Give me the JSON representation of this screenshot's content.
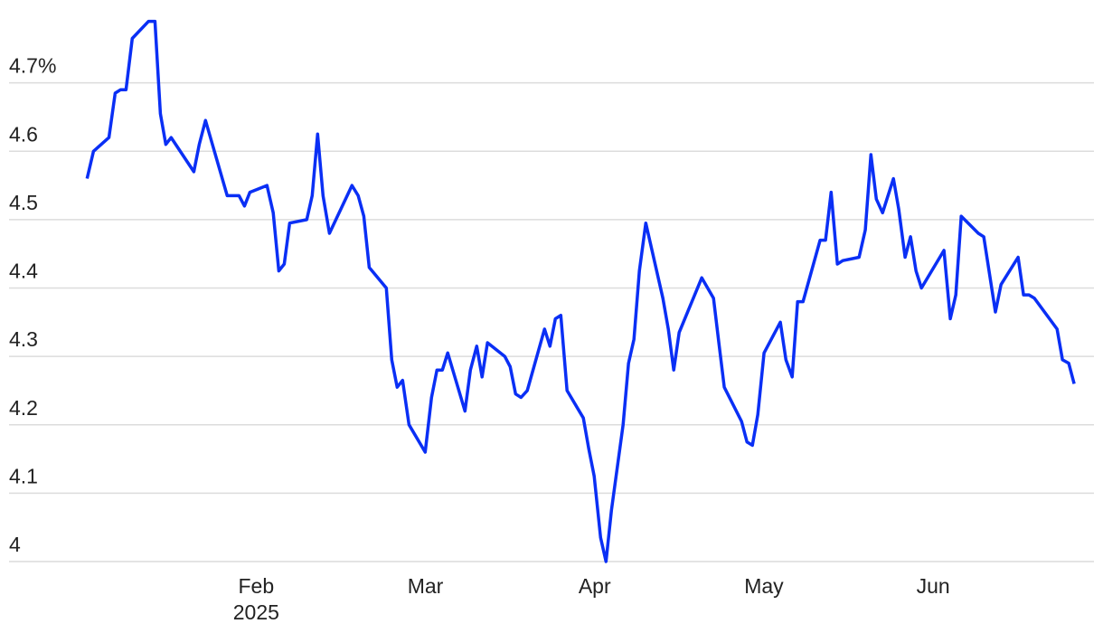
{
  "chart_data": {
    "type": "line",
    "x": [
      1.001,
      1.039,
      1.13,
      1.167,
      1.199,
      1.231,
      1.268,
      1.364,
      1.402,
      1.434,
      1.466,
      1.498,
      1.632,
      1.664,
      1.701,
      1.829,
      1.899,
      1.931,
      1.963,
      2.064,
      2.101,
      2.134,
      2.166,
      2.198,
      2.299,
      2.331,
      2.363,
      2.395,
      2.433,
      2.566,
      2.603,
      2.636,
      2.668,
      2.769,
      2.801,
      2.833,
      2.865,
      2.903,
      2.999,
      3.036,
      3.068,
      3.1,
      3.132,
      3.234,
      3.266,
      3.303,
      3.335,
      3.367,
      3.469,
      3.501,
      3.533,
      3.565,
      3.602,
      3.704,
      3.736,
      3.768,
      3.8,
      3.837,
      3.933,
      3.965,
      3.997,
      4.035,
      4.067,
      4.099,
      4.168,
      4.2,
      4.232,
      4.264,
      4.302,
      4.403,
      4.435,
      4.467,
      4.499,
      4.633,
      4.702,
      4.734,
      4.766,
      4.868,
      4.9,
      4.932,
      4.964,
      5.001,
      5.097,
      5.13,
      5.167,
      5.199,
      5.231,
      5.332,
      5.364,
      5.397,
      5.434,
      5.466,
      5.562,
      5.599,
      5.632,
      5.664,
      5.701,
      5.765,
      5.797,
      5.834,
      5.866,
      5.899,
      5.931,
      6.064,
      6.101,
      6.134,
      6.166,
      6.267,
      6.299,
      6.368,
      6.401,
      6.502,
      6.534,
      6.566,
      6.598,
      6.732,
      6.764,
      6.801,
      6.833
    ],
    "values": [
      4.56,
      4.6,
      4.62,
      4.685,
      4.69,
      4.69,
      4.765,
      4.79,
      4.79,
      4.655,
      4.61,
      4.62,
      4.57,
      4.61,
      4.645,
      4.535,
      4.535,
      4.52,
      4.54,
      4.55,
      4.51,
      4.425,
      4.435,
      4.495,
      4.5,
      4.535,
      4.625,
      4.535,
      4.48,
      4.55,
      4.535,
      4.505,
      4.43,
      4.4,
      4.295,
      4.255,
      4.265,
      4.2,
      4.16,
      4.24,
      4.28,
      4.28,
      4.305,
      4.22,
      4.28,
      4.315,
      4.27,
      4.32,
      4.3,
      4.285,
      4.245,
      4.24,
      4.25,
      4.34,
      4.315,
      4.355,
      4.36,
      4.25,
      4.21,
      4.165,
      4.125,
      4.035,
      4.0,
      4.075,
      4.2,
      4.29,
      4.325,
      4.425,
      4.495,
      4.385,
      4.34,
      4.28,
      4.335,
      4.415,
      4.385,
      4.32,
      4.255,
      4.205,
      4.175,
      4.17,
      4.215,
      4.305,
      4.35,
      4.295,
      4.27,
      4.38,
      4.38,
      4.47,
      4.47,
      4.54,
      4.435,
      4.44,
      4.445,
      4.485,
      4.595,
      4.53,
      4.51,
      4.56,
      4.515,
      4.445,
      4.475,
      4.425,
      4.4,
      4.455,
      4.355,
      4.39,
      4.505,
      4.48,
      4.475,
      4.365,
      4.405,
      4.445,
      4.39,
      4.39,
      4.385,
      4.34,
      4.295,
      4.29,
      4.26
    ],
    "color": "#0a2ff5",
    "xlim": [
      0.54,
      6.95
    ],
    "xticks": [
      {
        "value": 2,
        "label": "Feb"
      },
      {
        "value": 3,
        "label": "Mar"
      },
      {
        "value": 4,
        "label": "Apr"
      },
      {
        "value": 5,
        "label": "May"
      },
      {
        "value": 6,
        "label": "Jun"
      }
    ],
    "year_label": "2025",
    "ylim": [
      4,
      4.8
    ],
    "yticks": [
      4,
      4.1,
      4.2,
      4.3,
      4.4,
      4.5,
      4.6,
      {
        "value": 4.7,
        "label": "4.7%"
      }
    ],
    "grid": true
  }
}
